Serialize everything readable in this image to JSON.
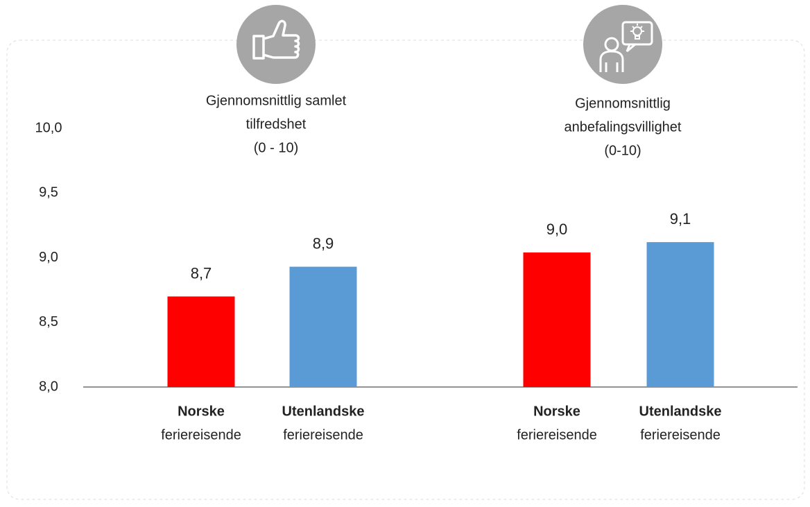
{
  "chart_data": {
    "type": "bar",
    "ylim": [
      8,
      10
    ],
    "yticks": [
      {
        "value": 8,
        "label": "8,0"
      },
      {
        "value": 8.5,
        "label": "8,5"
      },
      {
        "value": 9,
        "label": "9,0"
      },
      {
        "value": 9.5,
        "label": "9,5"
      },
      {
        "value": 10,
        "label": "10,0"
      }
    ],
    "groups": [
      {
        "title": [
          "Gjennomsnittlig samlet",
          "tilfredshet",
          "(0 - 10)"
        ],
        "categories": [
          [
            "Norske",
            "feriereisende"
          ],
          [
            "Utenlandske",
            "feriereisende"
          ]
        ],
        "values": [
          8.7,
          8.93
        ],
        "value_labels": [
          "8,7",
          "8,9"
        ],
        "colors": [
          "#ff0000",
          "#5b9bd5"
        ]
      },
      {
        "title": [
          "Gjennomsnittlig",
          "anbefalingsvillighet",
          "(0-10)"
        ],
        "categories": [
          [
            "Norske",
            "feriereisende"
          ],
          [
            "Utenlandske",
            "feriereisende"
          ]
        ],
        "values": [
          9.04,
          9.12
        ],
        "value_labels": [
          "9,0",
          "9,1"
        ],
        "colors": [
          "#ff0000",
          "#5b9bd5"
        ]
      }
    ]
  }
}
